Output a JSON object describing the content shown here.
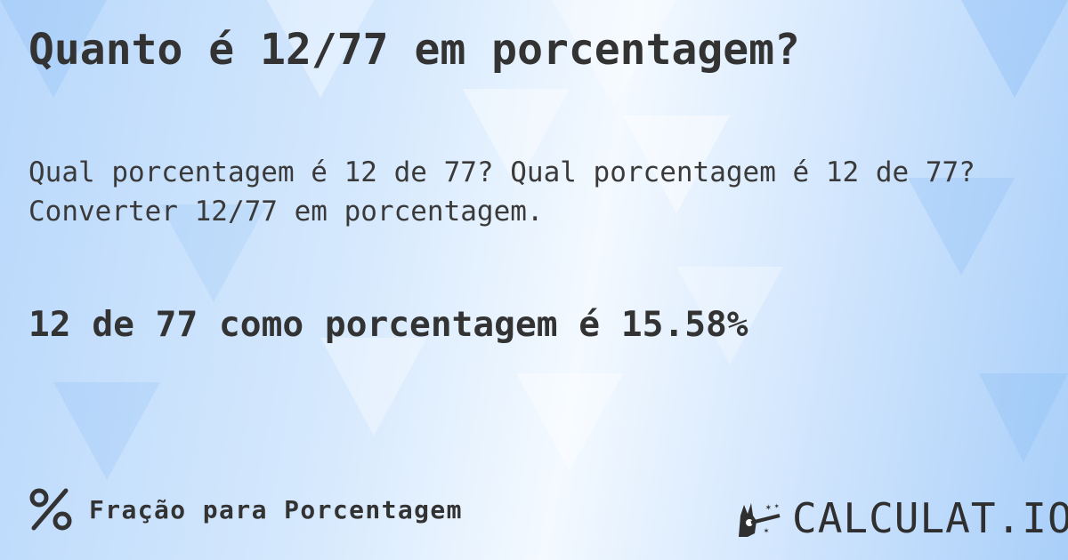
{
  "header": {
    "title": "Quanto é 12/77 em porcentagem?"
  },
  "description": {
    "line1": "Qual porcentagem é 12 de 77? Qual porcentagem é 12 de 77?",
    "line2": "Converter 12/77 em porcentagem."
  },
  "result": {
    "text": "12 de 77 como porcentagem é 15.58%"
  },
  "footer": {
    "category_icon": "percent-icon",
    "category_label": "Fração para Porcentagem",
    "logo_icon": "magic-hand-icon",
    "logo_text": "CALCULAT.IO"
  },
  "colors": {
    "text": "#333333",
    "background_accent": "#a9cff9"
  }
}
